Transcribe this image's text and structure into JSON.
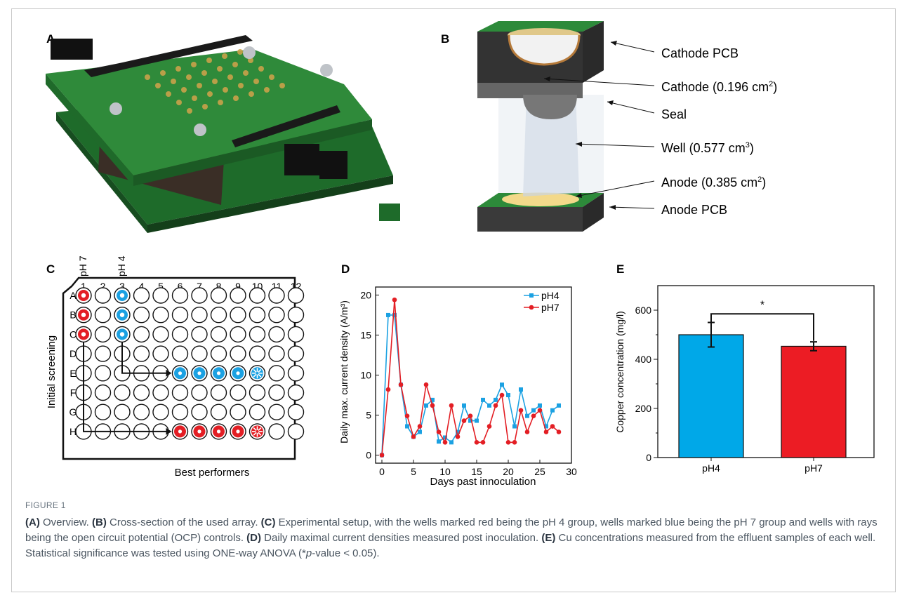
{
  "panel_labels": [
    "A",
    "B",
    "C",
    "D",
    "E"
  ],
  "panel_b": {
    "labels": [
      {
        "text": "Cathode PCB",
        "sup": ""
      },
      {
        "text": "Cathode (0.196 cm",
        "sup": "2",
        "tail": ")"
      },
      {
        "text": "Seal",
        "sup": ""
      },
      {
        "text": "Well (0.577 cm",
        "sup": "3",
        "tail": ")"
      },
      {
        "text": "Anode (0.385 cm",
        "sup": "2",
        "tail": ")"
      },
      {
        "text": "Anode PCB",
        "sup": ""
      }
    ]
  },
  "panel_c": {
    "rows": [
      "A",
      "B",
      "C",
      "D",
      "E",
      "F",
      "G",
      "H"
    ],
    "cols": [
      "1",
      "2",
      "3",
      "4",
      "5",
      "6",
      "7",
      "8",
      "9",
      "10",
      "11",
      "12"
    ],
    "col_top_labels": [
      "pH 7",
      "pH 4"
    ],
    "side_label": "Initial screening",
    "bottom_label": "Best performers",
    "colors": {
      "red": "#e31e24",
      "blue": "#1ba1e2"
    }
  },
  "chart_data": [
    {
      "type": "line",
      "xlabel": "Days past innoculation",
      "ylabel": "Daily max. current density (A/m³)",
      "xlim": [
        -1,
        30
      ],
      "ylim": [
        -1,
        21
      ],
      "xticks": [
        0,
        5,
        10,
        15,
        20,
        25,
        30
      ],
      "yticks": [
        0,
        5,
        10,
        15,
        20
      ],
      "legend_position": "top-right",
      "series": [
        {
          "name": "pH4",
          "color": "#1ba1e2",
          "marker": "square",
          "x": [
            0,
            1,
            2,
            3,
            4,
            5,
            6,
            7,
            8,
            9,
            10,
            11,
            12,
            13,
            14,
            15,
            16,
            17,
            18,
            19,
            20,
            21,
            22,
            23,
            24,
            25,
            26,
            27,
            28
          ],
          "y": [
            0,
            17.5,
            17.5,
            8.8,
            3.6,
            2.3,
            2.9,
            6.2,
            6.9,
            1.7,
            2.2,
            1.6,
            2.9,
            6.2,
            4.3,
            4.3,
            6.9,
            6.2,
            6.9,
            8.8,
            7.5,
            3.6,
            8.2,
            4.9,
            5.6,
            6.2,
            3.6,
            5.6,
            6.2
          ]
        },
        {
          "name": "pH7",
          "color": "#e31e24",
          "marker": "circle",
          "x": [
            0,
            1,
            2,
            3,
            4,
            5,
            6,
            7,
            8,
            9,
            10,
            11,
            12,
            13,
            14,
            15,
            16,
            17,
            18,
            19,
            20,
            21,
            22,
            23,
            24,
            25,
            26,
            27,
            28
          ],
          "y": [
            0,
            8.2,
            19.4,
            8.8,
            4.9,
            2.3,
            3.6,
            8.8,
            6.2,
            2.9,
            1.6,
            6.2,
            2.3,
            4.3,
            4.9,
            1.6,
            1.6,
            3.6,
            6.2,
            7.5,
            1.6,
            1.6,
            5.6,
            2.9,
            4.9,
            5.6,
            2.9,
            3.6,
            2.9
          ]
        }
      ]
    },
    {
      "type": "bar",
      "categories": [
        "pH4",
        "pH7"
      ],
      "values": [
        500,
        453
      ],
      "errors": [
        50,
        18
      ],
      "colors": [
        "#00a8e8",
        "#ec1c24"
      ],
      "ylabel": "Copper concentration (mg/l)",
      "ylim": [
        0,
        700
      ],
      "yticks": [
        0,
        200,
        400,
        600
      ],
      "significance": "*"
    }
  ],
  "caption": {
    "figure_label": "FIGURE 1",
    "parts": [
      {
        "b": "(A)",
        "t": " Overview. "
      },
      {
        "b": "(B)",
        "t": " Cross-section of the used array. "
      },
      {
        "b": "(C)",
        "t": " Experimental setup, with the wells marked red being the pH 4 group, wells marked blue being the pH 7 group and wells with rays being the open circuit potential (OCP) controls. "
      },
      {
        "b": "(D)",
        "t": " Daily maximal current densities measured post inoculation. "
      },
      {
        "b": "(E)",
        "t": " Cu concentrations measured from the effluent samples of each well. Statistical significance was tested using ONE-way ANOVA (*"
      },
      {
        "i": "p",
        "t": "-value < 0.05)."
      }
    ]
  }
}
